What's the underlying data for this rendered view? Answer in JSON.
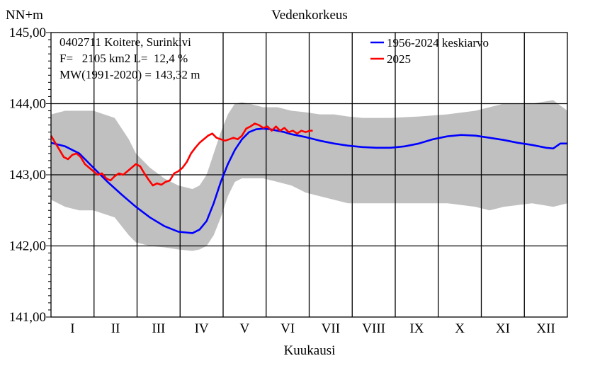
{
  "chart_data": {
    "type": "line",
    "title": "Vedenkorkeus",
    "ylabel": "NN+m",
    "xlabel": "Kuukausi",
    "ylim": [
      141.0,
      145.0
    ],
    "y_ticks": [
      "141,00",
      "142,00",
      "143,00",
      "144,00",
      "145,00"
    ],
    "y_tick_values": [
      141,
      142,
      143,
      144,
      145
    ],
    "x_range_days": [
      0,
      365
    ],
    "months": [
      "I",
      "II",
      "III",
      "IV",
      "V",
      "VI",
      "VII",
      "VIII",
      "IX",
      "X",
      "XI",
      "XII"
    ],
    "info_lines": [
      "0402711 Koitere, Surinkivi",
      "F=   2105 km2 L=  12,4 %",
      "MW(1991-2020) = 143,32 m"
    ],
    "legend_position": "top-right",
    "grid": true,
    "band": {
      "color": "#c0c0c0",
      "x": [
        0,
        10,
        20,
        30,
        45,
        55,
        60,
        70,
        80,
        90,
        100,
        105,
        110,
        115,
        120,
        125,
        130,
        135,
        140,
        150,
        160,
        170,
        180,
        190,
        200,
        210,
        220,
        240,
        260,
        280,
        300,
        310,
        320,
        340,
        355,
        365
      ],
      "upper": [
        143.85,
        143.9,
        143.9,
        143.9,
        143.8,
        143.5,
        143.3,
        143.1,
        142.95,
        142.85,
        142.8,
        142.85,
        143.0,
        143.3,
        143.6,
        143.85,
        144.0,
        144.02,
        144.0,
        143.95,
        143.95,
        143.9,
        143.88,
        143.85,
        143.85,
        143.82,
        143.8,
        143.8,
        143.82,
        143.85,
        143.9,
        143.95,
        144.0,
        144.0,
        144.05,
        143.9
      ],
      "lower": [
        142.65,
        142.55,
        142.5,
        142.5,
        142.4,
        142.15,
        142.05,
        142.0,
        141.98,
        141.95,
        141.93,
        141.95,
        142.0,
        142.15,
        142.4,
        142.7,
        142.9,
        142.95,
        142.95,
        142.95,
        142.9,
        142.85,
        142.75,
        142.7,
        142.65,
        142.6,
        142.6,
        142.6,
        142.6,
        142.6,
        142.55,
        142.5,
        142.55,
        142.6,
        142.55,
        142.6
      ]
    },
    "series": [
      {
        "name": "1956-2024 keskiarvo",
        "color": "#0000ff",
        "x": [
          0,
          10,
          20,
          30,
          40,
          50,
          60,
          70,
          80,
          90,
          100,
          105,
          110,
          115,
          120,
          125,
          130,
          135,
          140,
          145,
          150,
          155,
          160,
          165,
          170,
          180,
          190,
          200,
          210,
          220,
          230,
          240,
          250,
          260,
          270,
          280,
          290,
          300,
          310,
          320,
          330,
          340,
          350,
          355,
          360,
          365
        ],
        "y": [
          143.45,
          143.4,
          143.3,
          143.1,
          142.9,
          142.72,
          142.55,
          142.4,
          142.28,
          142.2,
          142.18,
          142.23,
          142.35,
          142.6,
          142.9,
          143.15,
          143.35,
          143.5,
          143.6,
          143.64,
          143.65,
          143.64,
          143.62,
          143.6,
          143.57,
          143.53,
          143.48,
          143.44,
          143.41,
          143.39,
          143.38,
          143.38,
          143.4,
          143.44,
          143.5,
          143.54,
          143.56,
          143.55,
          143.52,
          143.49,
          143.45,
          143.42,
          143.38,
          143.37,
          143.44,
          143.44
        ]
      },
      {
        "name": "2025",
        "color": "#ff0000",
        "x": [
          0,
          3,
          6,
          9,
          12,
          15,
          18,
          21,
          24,
          27,
          30,
          33,
          36,
          39,
          42,
          45,
          48,
          51,
          54,
          57,
          60,
          63,
          66,
          69,
          72,
          75,
          78,
          81,
          84,
          87,
          90,
          93,
          96,
          99,
          102,
          105,
          108,
          111,
          114,
          117,
          120,
          123,
          126,
          129,
          132,
          135,
          138,
          141,
          144,
          147,
          150,
          153,
          156,
          159,
          162,
          165,
          168,
          171,
          174,
          177,
          180,
          183,
          185
        ],
        "y": [
          143.55,
          143.45,
          143.35,
          143.25,
          143.22,
          143.28,
          143.3,
          143.25,
          143.15,
          143.1,
          143.05,
          143.0,
          143.02,
          142.95,
          142.92,
          142.98,
          143.02,
          143.0,
          143.05,
          143.1,
          143.15,
          143.12,
          143.02,
          142.93,
          142.85,
          142.88,
          142.86,
          142.9,
          142.92,
          143.02,
          143.05,
          143.1,
          143.18,
          143.3,
          143.38,
          143.45,
          143.5,
          143.55,
          143.58,
          143.52,
          143.5,
          143.48,
          143.5,
          143.52,
          143.5,
          143.55,
          143.65,
          143.68,
          143.72,
          143.7,
          143.66,
          143.68,
          143.62,
          143.68,
          143.62,
          143.66,
          143.6,
          143.62,
          143.58,
          143.62,
          143.6,
          143.62,
          143.62
        ]
      }
    ]
  }
}
